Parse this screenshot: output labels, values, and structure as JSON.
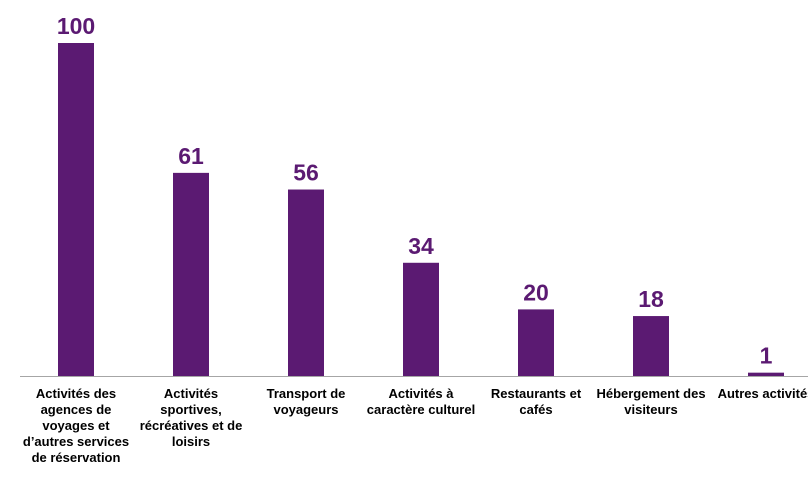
{
  "chart_data": {
    "type": "bar",
    "categories": [
      "Activités des agences de voyages et d’autres services de réservation",
      "Activités sportives, récréatives et de loisirs",
      "Transport de voyageurs",
      "Activités à caractère culturel",
      "Restaurants et cafés",
      "Hébergement des visiteurs",
      "Autres activités"
    ],
    "values": [
      100,
      61,
      56,
      34,
      20,
      18,
      1
    ],
    "color": "#5b1a72"
  }
}
